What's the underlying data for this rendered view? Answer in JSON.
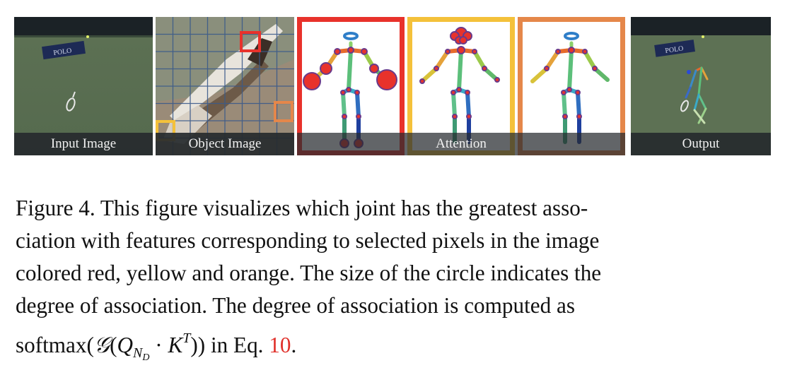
{
  "panels": {
    "input": {
      "label": "Input Image",
      "banner": "POLO"
    },
    "object": {
      "label": "Object Image"
    },
    "attention": {
      "label": "Attention",
      "items": [
        {
          "coord": "[5, 1]",
          "color": "#e8322b"
        },
        {
          "coord": "[0, 6]",
          "color": "#f4c13a"
        },
        {
          "coord": "[7,5]",
          "color": "#e5874a"
        }
      ]
    },
    "output": {
      "label": "Output",
      "banner": "POLO"
    }
  },
  "caption": {
    "line1": "Figure 4. This figure visualizes which joint has the greatest asso-",
    "line2": "ciation with features corresponding to selected pixels in the image",
    "line3": "colored red, yellow and orange. The size of the circle indicates the",
    "line4": "degree of association.  The degree of association is computed as",
    "line5_pre": "softmax(",
    "line5_G": "𝒢",
    "line5_open": "(",
    "line5_Q": "Q",
    "line5_sub": "N",
    "line5_subsub": "D",
    "line5_mid": " · ",
    "line5_K": "K",
    "line5_sup": "T",
    "line5_close": "))",
    "line5_in": " in Eq. ",
    "line5_ref": "10",
    "line5_end": "."
  },
  "colors": {
    "red": "#e8322b",
    "yellow": "#f4c13a",
    "orange": "#e5874a",
    "eq_ref": "#e0302a"
  }
}
